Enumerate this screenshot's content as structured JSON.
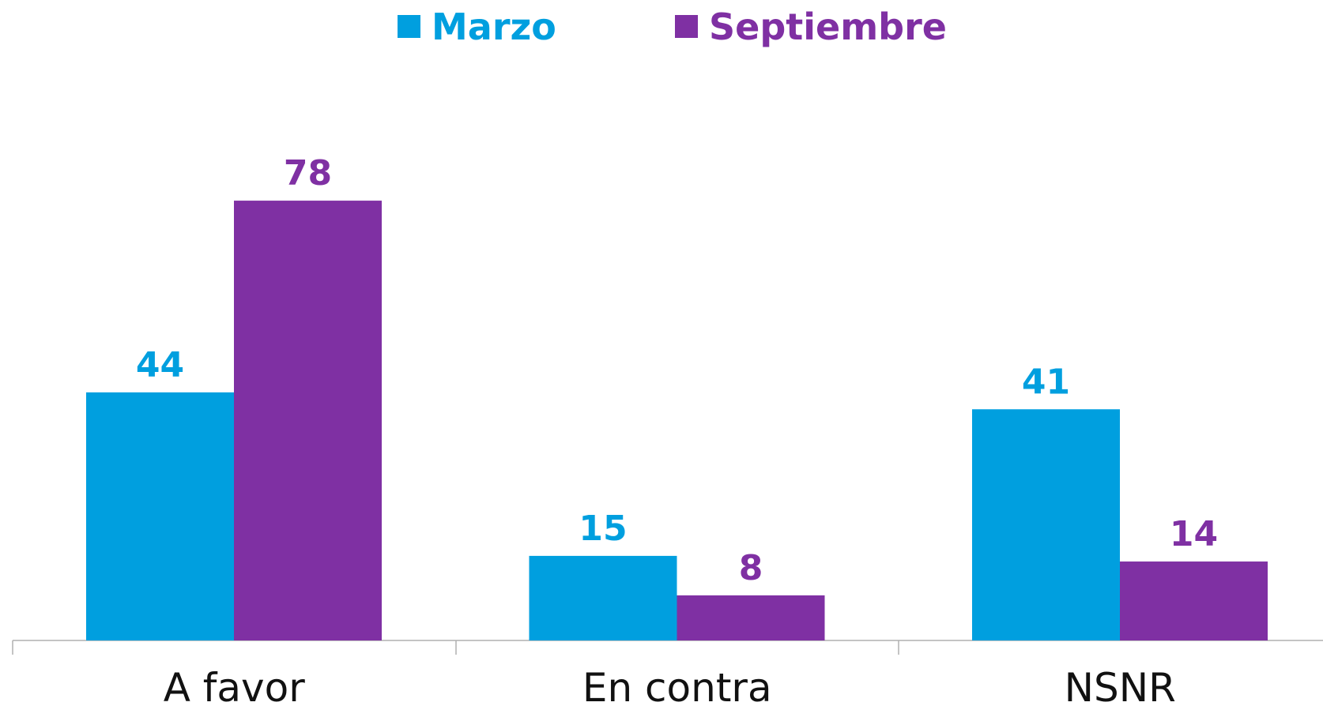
{
  "chart_data": {
    "type": "bar",
    "categories": [
      "A favor",
      "En contra",
      "NSNR"
    ],
    "series": [
      {
        "name": "Marzo",
        "color": "#009fdf",
        "values": [
          44,
          15,
          41
        ]
      },
      {
        "name": "Septiembre",
        "color": "#7f30a3",
        "values": [
          78,
          8,
          14
        ]
      }
    ],
    "legend": "top"
  }
}
